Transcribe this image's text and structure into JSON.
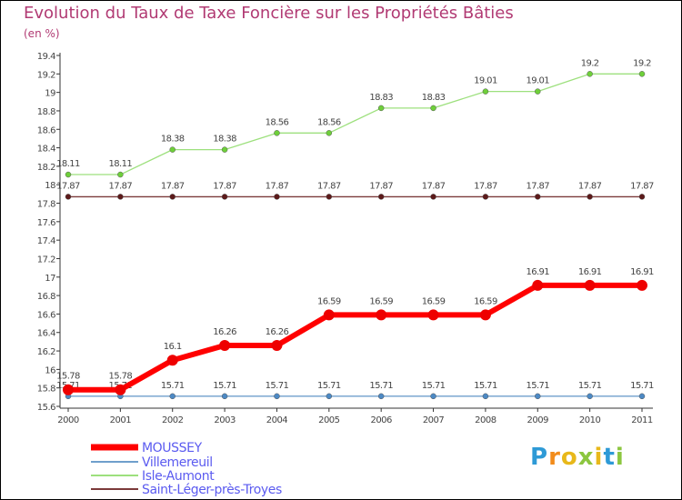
{
  "chart_data": {
    "type": "line",
    "title": "Evolution du Taux de Taxe Foncière sur les Propriétés Bâties",
    "unit_label": "(en %)",
    "xlabel": "",
    "ylabel": "",
    "ylim": [
      15.6,
      19.4
    ],
    "yticks": [
      "15.6",
      "15.8",
      "16",
      "16.2",
      "16.4",
      "16.6",
      "16.8",
      "17",
      "17.2",
      "17.4",
      "17.6",
      "17.8",
      "18",
      "18.2",
      "18.4",
      "18.6",
      "18.8",
      "19",
      "19.2",
      "19.4"
    ],
    "grid": false,
    "categories": [
      "2000",
      "2001",
      "2002",
      "2003",
      "2004",
      "2005",
      "2006",
      "2007",
      "2008",
      "2009",
      "2010",
      "2011"
    ],
    "series": [
      {
        "name": "MOUSSEY",
        "color": "#ff0000",
        "marker": "#ee0000",
        "values": [
          15.78,
          15.78,
          16.1,
          16.26,
          16.26,
          16.59,
          16.59,
          16.59,
          16.59,
          16.91,
          16.91,
          16.91
        ],
        "labels": [
          "15.78",
          "15.78",
          "16.1",
          "16.26",
          "16.26",
          "16.59",
          "16.59",
          "16.59",
          "16.59",
          "16.91",
          "16.91",
          "16.91"
        ]
      },
      {
        "name": "Villemereuil",
        "color": "#6f9fcc",
        "marker": "#4c89c4",
        "values": [
          15.71,
          15.71,
          15.71,
          15.71,
          15.71,
          15.71,
          15.71,
          15.71,
          15.71,
          15.71,
          15.71,
          15.71
        ],
        "labels": [
          "15.71",
          "15.71",
          "15.71",
          "15.71",
          "15.71",
          "15.71",
          "15.71",
          "15.71",
          "15.71",
          "15.71",
          "15.71",
          "15.71"
        ]
      },
      {
        "name": "Isle-Aumont",
        "color": "#9de07d",
        "marker": "#6ecf3a",
        "values": [
          18.11,
          18.11,
          18.38,
          18.38,
          18.56,
          18.56,
          18.83,
          18.83,
          19.01,
          19.01,
          19.2,
          19.2
        ],
        "labels": [
          "18.11",
          "18.11",
          "18.38",
          "18.38",
          "18.56",
          "18.56",
          "18.83",
          "18.83",
          "19.01",
          "19.01",
          "19.2",
          "19.2"
        ]
      },
      {
        "name": "Saint-Léger-près-Troyes",
        "color": "#7b3a3a",
        "marker": "#5c1a1a",
        "values": [
          17.87,
          17.87,
          17.87,
          17.87,
          17.87,
          17.87,
          17.87,
          17.87,
          17.87,
          17.87,
          17.87,
          17.87
        ],
        "labels": [
          "17.87",
          "17.87",
          "17.87",
          "17.87",
          "17.87",
          "17.87",
          "17.87",
          "17.87",
          "17.87",
          "17.87",
          "17.87",
          "17.87"
        ]
      }
    ],
    "legend_position": "bottom-left"
  },
  "legend_text_color": "#5b5bf0",
  "logo": {
    "text": "Proxiti",
    "letters": [
      "P",
      "r",
      "o",
      "x",
      "i",
      "t",
      "i"
    ],
    "colors": [
      "#2e9ad6",
      "#f28c1b",
      "#e8b81a",
      "#8cc63f",
      "#e8b81a",
      "#2e9ad6",
      "#8cc63f"
    ]
  }
}
